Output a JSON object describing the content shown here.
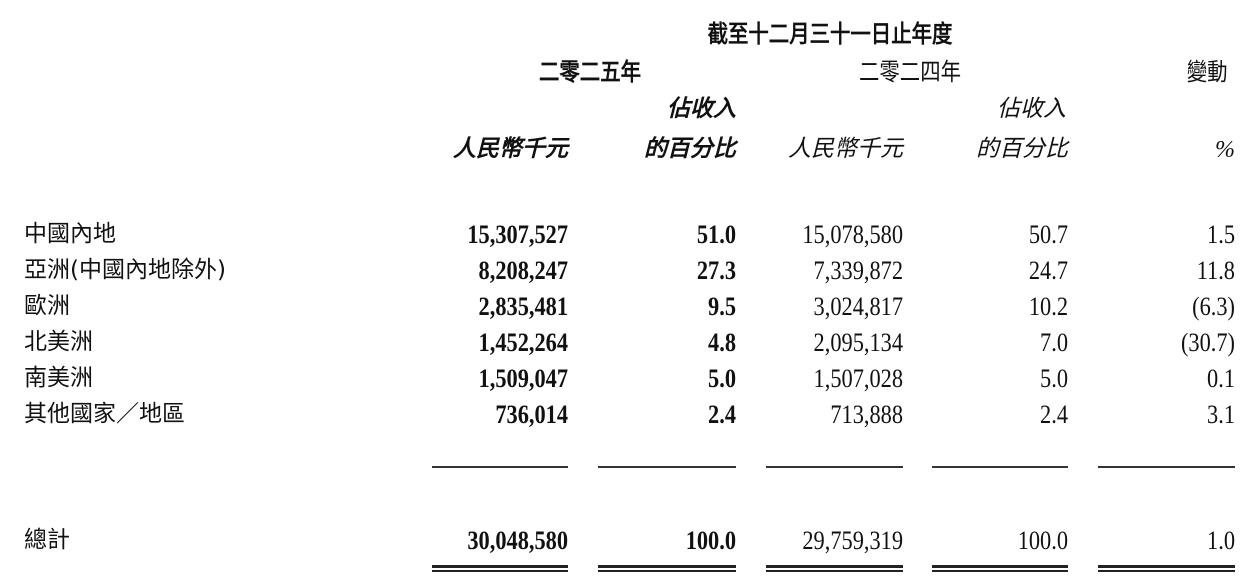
{
  "header": {
    "period": "截至十二月三十一日止年度",
    "year_2025": "二零二五年",
    "year_2024": "二零二四年",
    "change": "變動",
    "pct_of_revenue_line1": "佔收入",
    "pct_of_revenue_line2": "的百分比",
    "rmb_thousand": "人民幣千元",
    "percent": "%"
  },
  "rows": [
    {
      "region": "中國內地",
      "rmb_2025": "15,307,527",
      "pct_2025": "51.0",
      "rmb_2024": "15,078,580",
      "pct_2024": "50.7",
      "change": "1.5"
    },
    {
      "region": "亞洲(中國內地除外)",
      "rmb_2025": "8,208,247",
      "pct_2025": "27.3",
      "rmb_2024": "7,339,872",
      "pct_2024": "24.7",
      "change": "11.8"
    },
    {
      "region": "歐洲",
      "rmb_2025": "2,835,481",
      "pct_2025": "9.5",
      "rmb_2024": "3,024,817",
      "pct_2024": "10.2",
      "change": "(6.3)"
    },
    {
      "region": "北美洲",
      "rmb_2025": "1,452,264",
      "pct_2025": "4.8",
      "rmb_2024": "2,095,134",
      "pct_2024": "7.0",
      "change": "(30.7)"
    },
    {
      "region": "南美洲",
      "rmb_2025": "1,509,047",
      "pct_2025": "5.0",
      "rmb_2024": "1,507,028",
      "pct_2024": "5.0",
      "change": "0.1"
    },
    {
      "region": "其他國家／地區",
      "rmb_2025": "736,014",
      "pct_2025": "2.4",
      "rmb_2024": "713,888",
      "pct_2024": "2.4",
      "change": "3.1"
    }
  ],
  "total": {
    "region": "總計",
    "rmb_2025": "30,048,580",
    "pct_2025": "100.0",
    "rmb_2024": "29,759,319",
    "pct_2024": "100.0",
    "change": "1.0"
  }
}
